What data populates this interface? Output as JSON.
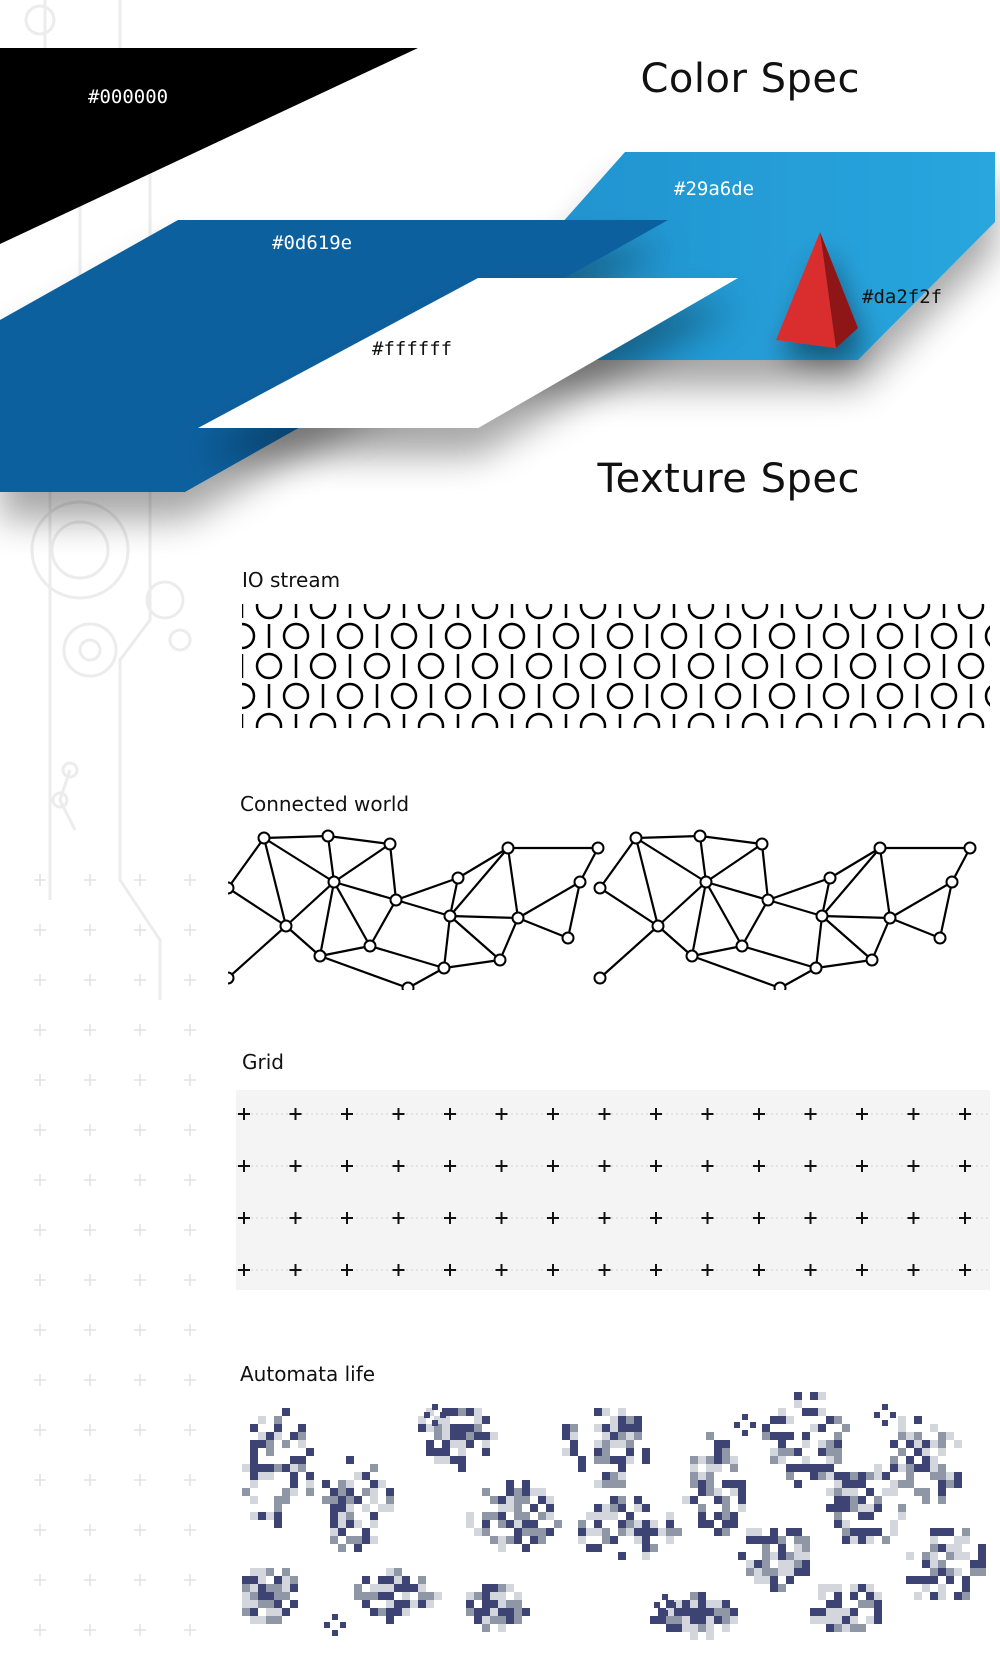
{
  "color_spec": {
    "title": "Color Spec",
    "swatches": [
      {
        "name": "black",
        "hex": "#000000"
      },
      {
        "name": "dark-blue",
        "hex": "#0d619e"
      },
      {
        "name": "light-blue",
        "hex": "#29a6de"
      },
      {
        "name": "white",
        "hex": "#ffffff"
      },
      {
        "name": "red",
        "hex": "#da2f2f"
      }
    ]
  },
  "texture_spec": {
    "title": "Texture Spec",
    "items": [
      {
        "label": "IO stream"
      },
      {
        "label": "Connected world"
      },
      {
        "label": "Grid"
      },
      {
        "label": "Automata life"
      }
    ]
  },
  "colors": {
    "automata_dark": "#3d4373",
    "automata_mid": "#8f97a6",
    "automata_light": "#d3d7dd",
    "grid_faint": "#d9d9d9"
  },
  "icons": [
    "circuit-decoration",
    "pyramid-shape",
    "plus-marker",
    "node-dot"
  ]
}
